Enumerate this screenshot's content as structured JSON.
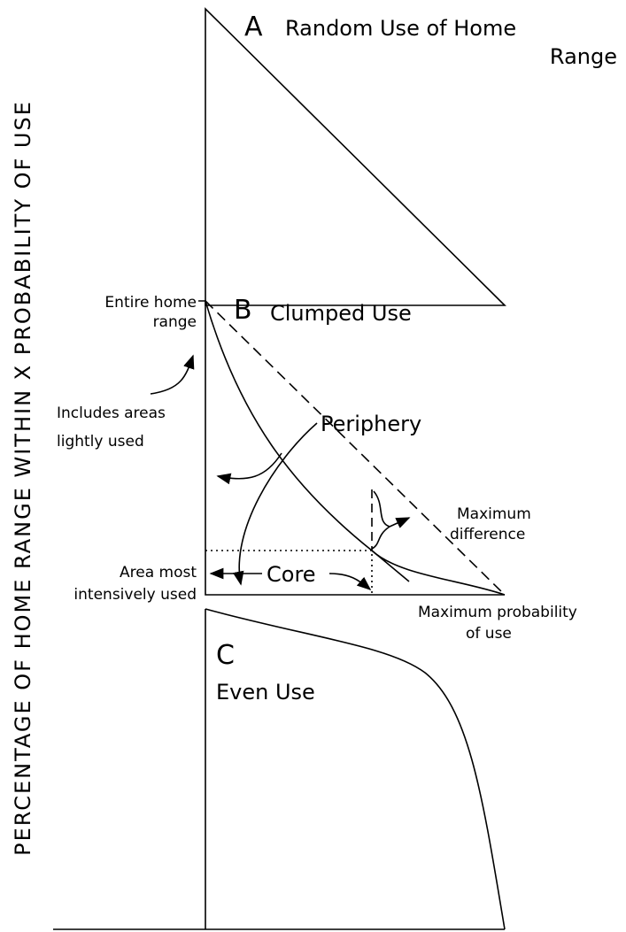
{
  "y_axis_label": "PERCENTAGE OF HOME RANGE WITHIN X PROBABILITY OF USE",
  "panel_a": {
    "letter": "A",
    "title_line1": "Random Use of Home",
    "title_line2": "Range"
  },
  "panel_b": {
    "letter": "B",
    "title": "Clumped Use",
    "entire_line1": "Entire home",
    "entire_line2": "range",
    "includes_line1": "Includes areas",
    "includes_line2": "lightly used",
    "periphery": "Periphery",
    "max_diff_line1": "Maximum",
    "max_diff_line2": "difference",
    "area_line1": "Area most",
    "area_line2": "intensively used",
    "core": "Core",
    "max_prob_line1": "Maximum probability",
    "max_prob_line2": "of use"
  },
  "panel_c": {
    "letter": "C",
    "title": "Even Use"
  }
}
